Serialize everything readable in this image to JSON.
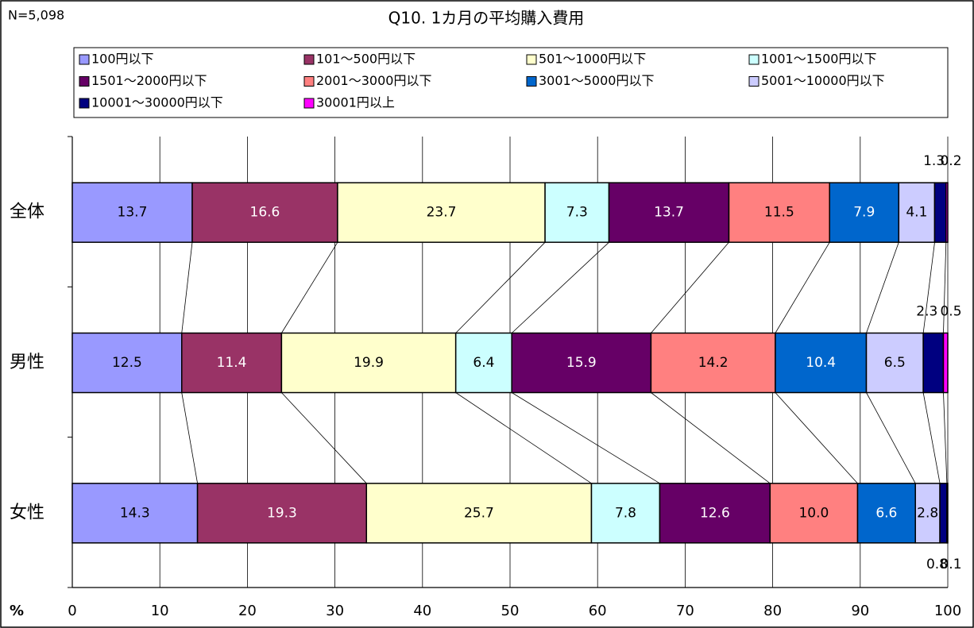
{
  "chart_data": {
    "type": "stacked_bar_horizontal",
    "note_text": "N=5,098",
    "title": "Q10. 1カ月の平均購入費用",
    "x_unit_label": "%",
    "categories": [
      "全体",
      "男性",
      "女性"
    ],
    "series": [
      {
        "name": "100円以下",
        "color": "#9999ff",
        "values": [
          13.7,
          12.5,
          14.3
        ],
        "value_labels": [
          "13.7",
          "12.5",
          "14.3"
        ]
      },
      {
        "name": "101～500円以下",
        "color": "#993366",
        "values": [
          16.6,
          11.4,
          19.3
        ],
        "value_labels": [
          "16.6",
          "11.4",
          "19.3"
        ]
      },
      {
        "name": "501～1000円以下",
        "color": "#ffffcc",
        "values": [
          23.7,
          19.9,
          25.7
        ],
        "value_labels": [
          "23.7",
          "19.9",
          "25.7"
        ]
      },
      {
        "name": "1001～1500円以下",
        "color": "#ccffff",
        "values": [
          7.3,
          6.4,
          7.8
        ],
        "value_labels": [
          "7.3",
          "6.4",
          "7.8"
        ]
      },
      {
        "name": "1501～2000円以下",
        "color": "#660066",
        "values": [
          13.7,
          15.9,
          12.6
        ],
        "value_labels": [
          "13.7",
          "15.9",
          "12.6"
        ]
      },
      {
        "name": "2001～3000円以下",
        "color": "#ff8080",
        "values": [
          11.5,
          14.2,
          10.0
        ],
        "value_labels": [
          "11.5",
          "14.2",
          "10.0"
        ]
      },
      {
        "name": "3001～5000円以下",
        "color": "#0066cc",
        "values": [
          7.9,
          10.4,
          6.6
        ],
        "value_labels": [
          "7.9",
          "10.4",
          "6.6"
        ]
      },
      {
        "name": "5001～10000円以下",
        "color": "#ccccff",
        "values": [
          4.1,
          6.5,
          2.8
        ],
        "value_labels": [
          "4.1",
          "6.5",
          "2.8"
        ]
      },
      {
        "name": "10001～30000円以下",
        "color": "#000080",
        "values": [
          1.3,
          2.3,
          0.8
        ],
        "value_labels": [
          "1.3",
          "2.3",
          "0.8"
        ]
      },
      {
        "name": "30001円以上",
        "color": "#ff00ff",
        "values": [
          0.2,
          0.5,
          0.1
        ],
        "value_labels": [
          "0.2",
          "0.5",
          "0.1"
        ]
      }
    ],
    "xlim": [
      0,
      100
    ],
    "xticks": [
      0,
      10,
      20,
      30,
      40,
      50,
      60,
      70,
      80,
      90,
      100
    ],
    "grid": true
  }
}
